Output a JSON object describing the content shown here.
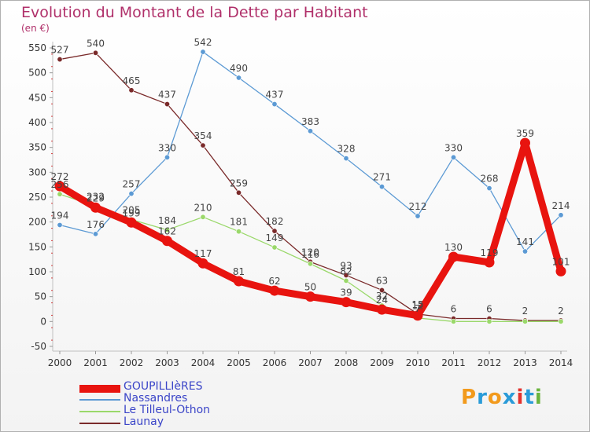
{
  "header": {
    "title": "Evolution du Montant de la Dette par Habitant",
    "subtitle": "(en €)"
  },
  "brand": {
    "text": "Proxiti",
    "colors": [
      "#f29a1c",
      "#2a9bd8",
      "#f29a1c",
      "#2a9bd8",
      "#e3312d",
      "#2a9bd8",
      "#6ab43e"
    ]
  },
  "chart_data": {
    "type": "line",
    "title": "Evolution du Montant de la Dette par Habitant",
    "subtitle": "(en €)",
    "x": [
      "2000",
      "2001",
      "2002",
      "2003",
      "2004",
      "2005",
      "2006",
      "2007",
      "2008",
      "2009",
      "2010",
      "2011",
      "2012",
      "2013",
      "2014"
    ],
    "ylim": [
      -50,
      550
    ],
    "yticks": [
      -50,
      0,
      50,
      100,
      150,
      200,
      250,
      300,
      350,
      400,
      450,
      500,
      550
    ],
    "grid": false,
    "legend_position": "bottom-left",
    "series": [
      {
        "name": "GOUPILLIèRES",
        "color": "#e8140f",
        "values": [
          272,
          229,
          199,
          162,
          117,
          81,
          62,
          50,
          39,
          24,
          12,
          130,
          119,
          359,
          101
        ],
        "labels": [
          "272",
          "229",
          "199",
          "162",
          "117",
          "81",
          "62",
          "50",
          "39",
          "24",
          "12",
          "130",
          "119",
          "359",
          "101"
        ]
      },
      {
        "name": "Nassandres",
        "color": "#5c9ad4",
        "values": [
          194,
          176,
          257,
          330,
          542,
          490,
          437,
          383,
          328,
          271,
          212,
          330,
          268,
          141,
          214
        ],
        "labels": [
          "194",
          "176",
          "257",
          "330",
          "542",
          "490",
          "437",
          "383",
          "328",
          "271",
          "212",
          "330",
          "268",
          "141",
          "214"
        ]
      },
      {
        "name": "Le Tilleul-Othon",
        "color": "#9ad86a",
        "values": [
          256,
          232,
          205,
          184,
          210,
          181,
          149,
          116,
          82,
          32,
          7,
          0,
          0,
          0,
          0
        ],
        "labels": [
          "256",
          "232",
          "205",
          "184",
          "210",
          "181",
          "149",
          "116",
          "82",
          "32",
          "7",
          "",
          "",
          "",
          ""
        ]
      },
      {
        "name": "Launay",
        "color": "#7a2a2a",
        "values": [
          527,
          540,
          465,
          437,
          354,
          259,
          182,
          120,
          93,
          63,
          15,
          6,
          6,
          2,
          2
        ],
        "labels": [
          "527",
          "540",
          "465",
          "437",
          "354",
          "259",
          "182",
          "120",
          "93",
          "63",
          "15",
          "6",
          "6",
          "2",
          "2"
        ]
      }
    ]
  }
}
